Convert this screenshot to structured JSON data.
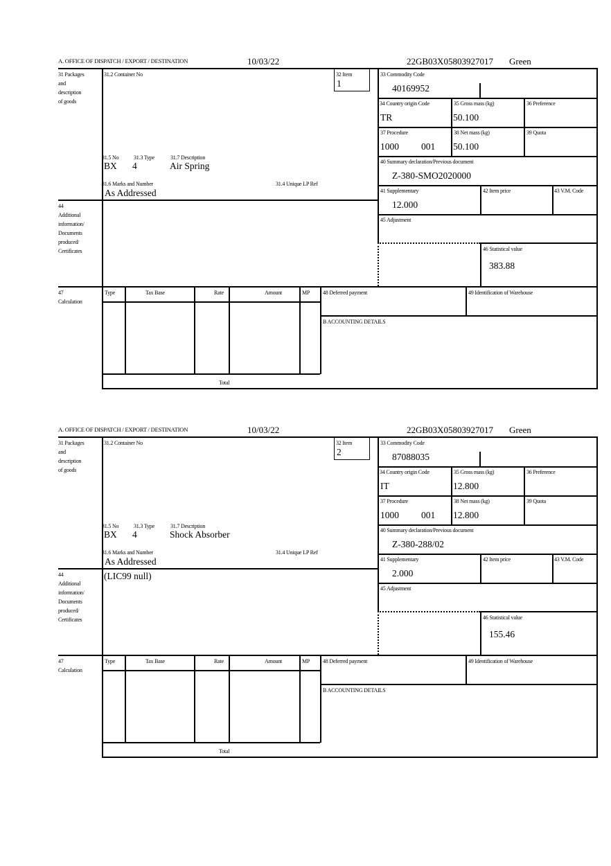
{
  "header": {
    "office_label": "A. OFFICE OF DISPATCH / EXPORT / DESTINATION"
  },
  "labels": {
    "b31": "31 Packages",
    "b31_2": "and",
    "b31_3": "description",
    "b31_4": "of goods",
    "container": "31.2 Container No",
    "item": "32 Item",
    "no": "31.5 No",
    "type": "31.3 Type",
    "description": "31.7 Description",
    "marks": "31.6 Marks and Number",
    "unique": "31.4 Unique LP Ref",
    "b44_1": "44",
    "b44_2": "Additional",
    "b44_3": "information/",
    "b44_4": "Documents",
    "b44_5": "produced/",
    "b44_6": "Certificates",
    "commodity": "33 Commodity Code",
    "country": "34 Country origin Code",
    "gross": "35 Gross mass (kg)",
    "preference": "36 Preference",
    "procedure": "37 Procedure",
    "net": "38 Net mass (kg)",
    "quota": "39 Quota",
    "summary": "40 Summary declaration/Previous document",
    "supplementary": "41 Supplementary",
    "item_price": "42 Item price",
    "vm_code": "43 V.M. Code",
    "adjustment": "45 Adjustment",
    "statistical": "46 Statistical value",
    "b47_1": "47",
    "b47_2": "Calculation",
    "col_type": "Type",
    "col_tax_base": "Tax Base",
    "col_rate": "Rate",
    "col_amount": "Amount",
    "col_mp": "MP",
    "deferred": "48 Deferred payment",
    "warehouse": "49 Identification of Warehouse",
    "accounting": "B ACCOUNTING DETAILS",
    "total": "Total"
  },
  "forms": [
    {
      "date": "10/03/22",
      "reference": "22GB03X05803927017",
      "route": "Green",
      "item": "1",
      "pkg_no": "BX",
      "pkg_type": "4",
      "description": "Air Spring",
      "marks": "As Addressed",
      "additional_info": "",
      "commodity_code": "40169952",
      "country": "TR",
      "gross_mass": "50.100",
      "procedure": "1000",
      "procedure_add": "001",
      "net_mass": "50.100",
      "summary_doc": "Z-380-SMO2020000",
      "supplementary": "12.000",
      "statistical_value": "383.88"
    },
    {
      "date": "10/03/22",
      "reference": "22GB03X05803927017",
      "route": "Green",
      "item": "2",
      "pkg_no": "BX",
      "pkg_type": "4",
      "description": "Shock Absorber",
      "marks": "As Addressed",
      "additional_info": "(LIC99 null)",
      "commodity_code": "87088035",
      "country": "IT",
      "gross_mass": "12.800",
      "procedure": "1000",
      "procedure_add": "001",
      "net_mass": "12.800",
      "summary_doc": "Z-380-288/02",
      "supplementary": "2.000",
      "statistical_value": "155.46"
    }
  ]
}
